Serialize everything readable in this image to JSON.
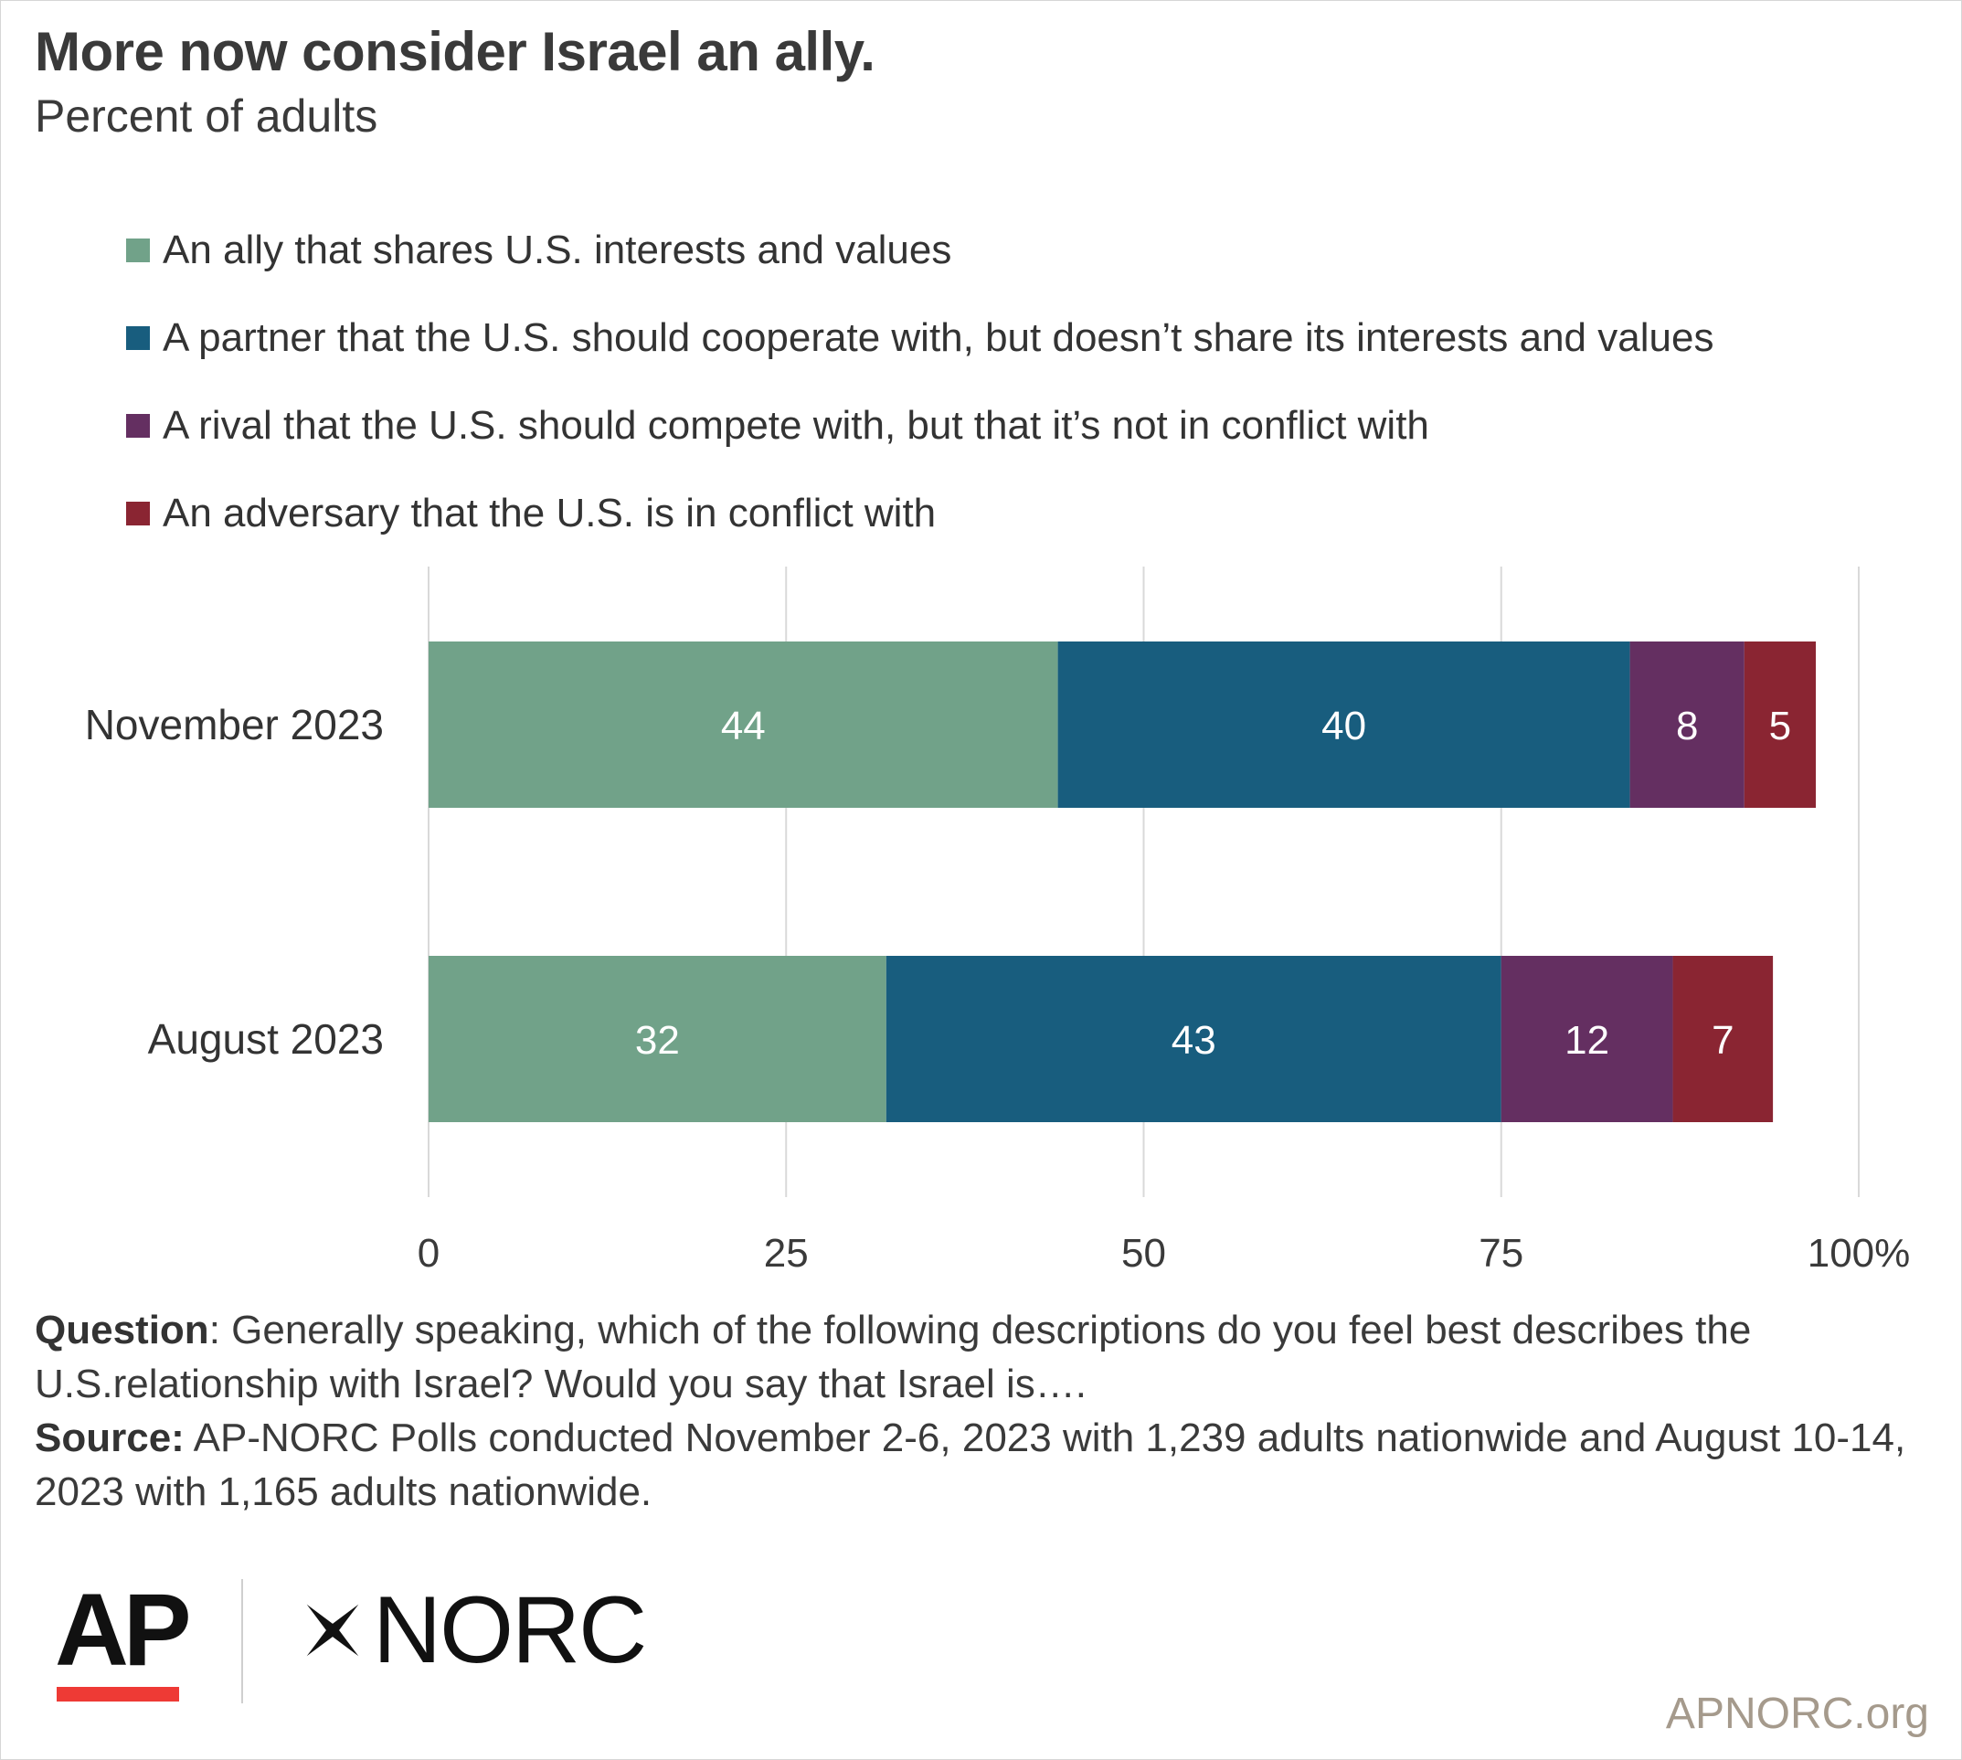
{
  "chart_data": {
    "type": "bar",
    "orientation": "horizontal",
    "stacked": true,
    "title": "More now consider Israel an ally.",
    "subtitle": "Percent of adults",
    "categories": [
      "November 2023",
      "August 2023"
    ],
    "series": [
      {
        "name": "An ally that shares U.S. interests and values",
        "color": "#71a289",
        "values": [
          44,
          32
        ]
      },
      {
        "name": "A partner that the U.S. should cooperate with, but doesn’t share its interests and values",
        "color": "#185d7e",
        "values": [
          40,
          43
        ]
      },
      {
        "name": "A rival that the U.S. should compete with, but that it’s not in conflict with",
        "color": "#642f61",
        "values": [
          8,
          12
        ]
      },
      {
        "name": "An adversary that the U.S. is in conflict with",
        "color": "#8a2532",
        "values": [
          5,
          7
        ]
      }
    ],
    "xlim": [
      0,
      100
    ],
    "xticks": [
      "0",
      "25",
      "50",
      "75",
      "100%"
    ],
    "grid": true,
    "legend": "top"
  },
  "notes": {
    "question_label": "Question",
    "question_text": ": Generally speaking, which of the following descriptions do you feel best describes the U.S.relationship with Israel? Would you say that Israel is….",
    "source_label": "Source:",
    "source_text": " AP-NORC Polls conducted November 2-6, 2023 with 1,239 adults nationwide and August 10-14, 2023 with 1,165 adults nationwide."
  },
  "logos": {
    "ap": "AP",
    "norc": "NORC",
    "site": "APNORC.org"
  }
}
